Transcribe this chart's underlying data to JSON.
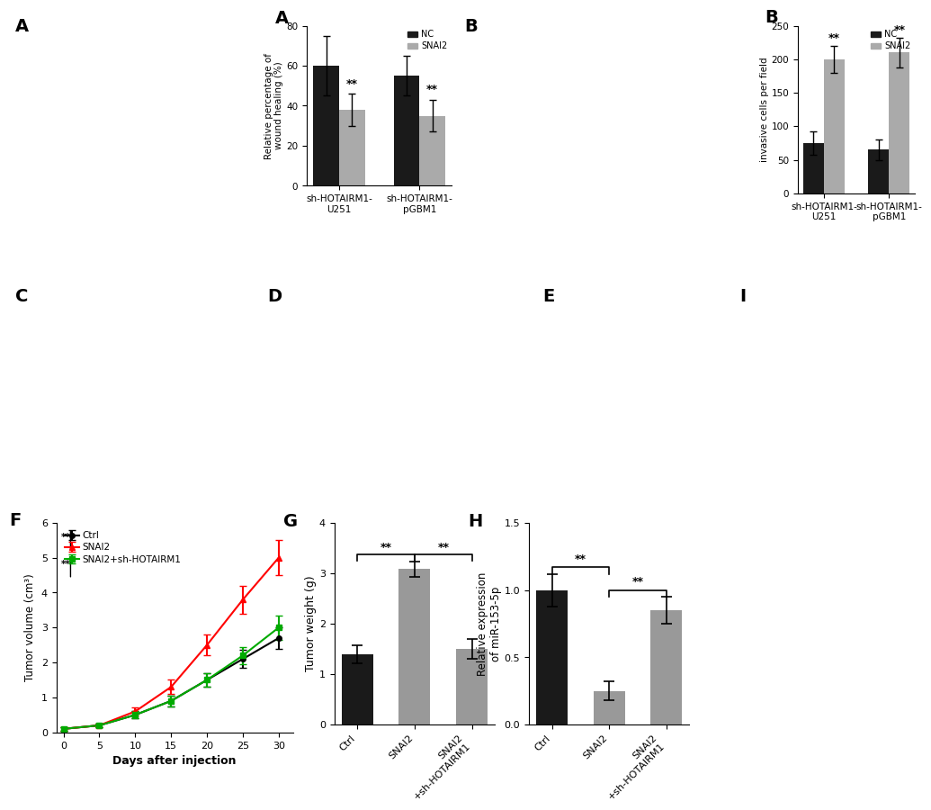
{
  "panel_A": {
    "ylabel": "Relative percentage of\nwound healing (%)",
    "categories": [
      "sh-HOTAIRM1-\nU251",
      "sh-HOTAIRM1-\npGBM1"
    ],
    "NC_values": [
      60,
      55
    ],
    "SNAI2_values": [
      38,
      35
    ],
    "NC_errors": [
      15,
      10
    ],
    "SNAI2_errors": [
      8,
      8
    ],
    "ylim": [
      0,
      80
    ],
    "yticks": [
      0,
      20,
      40,
      60,
      80
    ],
    "NC_color": "#1a1a1a",
    "SNAI2_color": "#aaaaaa",
    "sig_labels": [
      "**",
      "**"
    ]
  },
  "panel_B": {
    "ylabel": "invasive cells per field",
    "categories": [
      "sh-HOTAIRM1-\nU251",
      "sh-HOTAIRM1-\npGBM1"
    ],
    "NC_values": [
      75,
      65
    ],
    "SNAI2_values": [
      200,
      210
    ],
    "NC_errors": [
      18,
      16
    ],
    "SNAI2_errors": [
      20,
      22
    ],
    "ylim": [
      0,
      250
    ],
    "yticks": [
      0,
      50,
      100,
      150,
      200,
      250
    ],
    "NC_color": "#1a1a1a",
    "SNAI2_color": "#aaaaaa",
    "sig_labels": [
      "**",
      "**"
    ]
  },
  "panel_F": {
    "xlabel": "Days after injection",
    "ylabel": "Tumor volume (cm³)",
    "days": [
      0,
      5,
      10,
      15,
      20,
      25,
      30
    ],
    "ctrl_values": [
      0.1,
      0.2,
      0.5,
      0.9,
      1.5,
      2.1,
      2.7
    ],
    "snai2_values": [
      0.1,
      0.2,
      0.6,
      1.3,
      2.5,
      3.8,
      5.0
    ],
    "snai2_sh_values": [
      0.1,
      0.2,
      0.5,
      0.9,
      1.5,
      2.2,
      3.0
    ],
    "ctrl_errors": [
      0.05,
      0.05,
      0.1,
      0.15,
      0.2,
      0.25,
      0.3
    ],
    "snai2_errors": [
      0.05,
      0.06,
      0.12,
      0.2,
      0.3,
      0.4,
      0.5
    ],
    "snai2_sh_errors": [
      0.05,
      0.05,
      0.1,
      0.15,
      0.2,
      0.25,
      0.35
    ],
    "ctrl_color": "#000000",
    "snai2_color": "#ff0000",
    "snai2_sh_color": "#00aa00",
    "ylim": [
      0,
      6
    ],
    "yticks": [
      0,
      1,
      2,
      3,
      4,
      5,
      6
    ],
    "sig_labels": [
      "**",
      "**"
    ]
  },
  "panel_G": {
    "ylabel": "Tumor weight (g)",
    "categories": [
      "Ctrl",
      "SNAI2",
      "SNAI2\n+sh-HOTAIRM1"
    ],
    "values": [
      1.4,
      3.08,
      1.5
    ],
    "errors": [
      0.18,
      0.15,
      0.2
    ],
    "ylim": [
      0,
      4
    ],
    "yticks": [
      0,
      1,
      2,
      3,
      4
    ],
    "colors": [
      "#1a1a1a",
      "#999999",
      "#999999"
    ],
    "sig_labels": [
      "**",
      "**"
    ]
  },
  "panel_H": {
    "ylabel": "Relative expression\nof miR-153-5p",
    "categories": [
      "Ctrl",
      "SNAI2",
      "SNAI2\n+sh-HOTAIRM1"
    ],
    "values": [
      1.0,
      0.25,
      0.85
    ],
    "errors": [
      0.12,
      0.07,
      0.1
    ],
    "ylim": [
      0.0,
      1.5
    ],
    "yticks": [
      0.0,
      0.5,
      1.0,
      1.5
    ],
    "colors": [
      "#1a1a1a",
      "#999999",
      "#999999"
    ],
    "sig_labels": [
      "**",
      "**"
    ]
  }
}
